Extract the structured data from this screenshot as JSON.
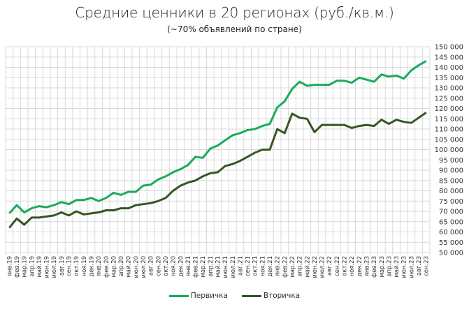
{
  "header": {
    "title": "Средние ценники в 20 регионах (руб./кв.м.)",
    "subtitle": "(~70% объявлений по стране)"
  },
  "legend": [
    {
      "label": "Первичка",
      "color": "#1aab5a"
    },
    {
      "label": "Вторичка",
      "color": "#375623"
    }
  ],
  "chart_data": {
    "type": "line",
    "title": "Средние ценники в 20 регионах (руб./кв.м.)",
    "subtitle": "(~70% объявлений по стране)",
    "xlabel": "",
    "ylabel": "",
    "ylim": [
      50000,
      150000
    ],
    "ytick_step": 5000,
    "y_axis_position": "right",
    "grid": true,
    "legend_position": "bottom",
    "yticks": [
      "150 000",
      "145 000",
      "140 000",
      "135 000",
      "130 000",
      "125 000",
      "120 000",
      "115 000",
      "110 000",
      "105 000",
      "100 000",
      "95 000",
      "90 000",
      "85 000",
      "80 000",
      "75 000",
      "70 000",
      "65 000",
      "60 000",
      "55 000",
      "50 000"
    ],
    "categories": [
      "янв.19",
      "фев.19",
      "мар.19",
      "апр.19",
      "май.19",
      "июн.19",
      "июл.19",
      "авг.19",
      "сен.19",
      "окт.19",
      "ноя.19",
      "дек.19",
      "янв.20",
      "фев.20",
      "мар.20",
      "апр.20",
      "май.20",
      "июн.20",
      "июл.20",
      "авг.20",
      "сен.20",
      "окт.20",
      "ноя.20",
      "дек.20",
      "янв.21",
      "фев.21",
      "мар.21",
      "апр.21",
      "май.21",
      "июн.21",
      "июл.21",
      "авг.21",
      "сен.21",
      "окт.21",
      "ноя.21",
      "дек.21",
      "янв.22",
      "фев.22",
      "мар.22",
      "апр.22",
      "май.22",
      "июн.22",
      "июл.22",
      "авг.22",
      "сен.22",
      "окт.22",
      "ноя.22",
      "дек.22",
      "янв.23",
      "фев.23",
      "мар.23",
      "апр.23",
      "май.23",
      "июн.23",
      "июл.23",
      "авг.23",
      "сен.23"
    ],
    "series": [
      {
        "name": "Первичка",
        "color": "#1aab5a",
        "values": [
          69000,
          73000,
          69500,
          71500,
          72500,
          72000,
          73000,
          74500,
          73500,
          75500,
          75500,
          76500,
          75000,
          76500,
          79000,
          78000,
          79500,
          79500,
          82500,
          83000,
          85500,
          87000,
          89000,
          90500,
          92500,
          96500,
          96000,
          100500,
          102000,
          104500,
          107000,
          108000,
          109500,
          110000,
          111500,
          112500,
          120500,
          123500,
          129500,
          133000,
          131000,
          131500,
          131500,
          131500,
          133500,
          133500,
          132500,
          135000,
          134000,
          133000,
          136500,
          135500,
          136000,
          134500,
          138500,
          141000,
          143000
        ]
      },
      {
        "name": "Вторичка",
        "color": "#375623",
        "values": [
          62000,
          66500,
          63500,
          67000,
          67000,
          67500,
          68000,
          69500,
          68000,
          70000,
          68500,
          69000,
          69500,
          70500,
          70500,
          71500,
          71500,
          73000,
          73500,
          74000,
          75000,
          76500,
          80000,
          82500,
          84000,
          85000,
          87000,
          88500,
          89000,
          92000,
          93000,
          94500,
          96500,
          98500,
          100000,
          100000,
          110000,
          108000,
          117500,
          115500,
          115000,
          108500,
          112000,
          112000,
          112000,
          112000,
          110500,
          111500,
          112000,
          111500,
          114500,
          112500,
          114500,
          113500,
          113000,
          115500,
          118000
        ]
      }
    ]
  }
}
